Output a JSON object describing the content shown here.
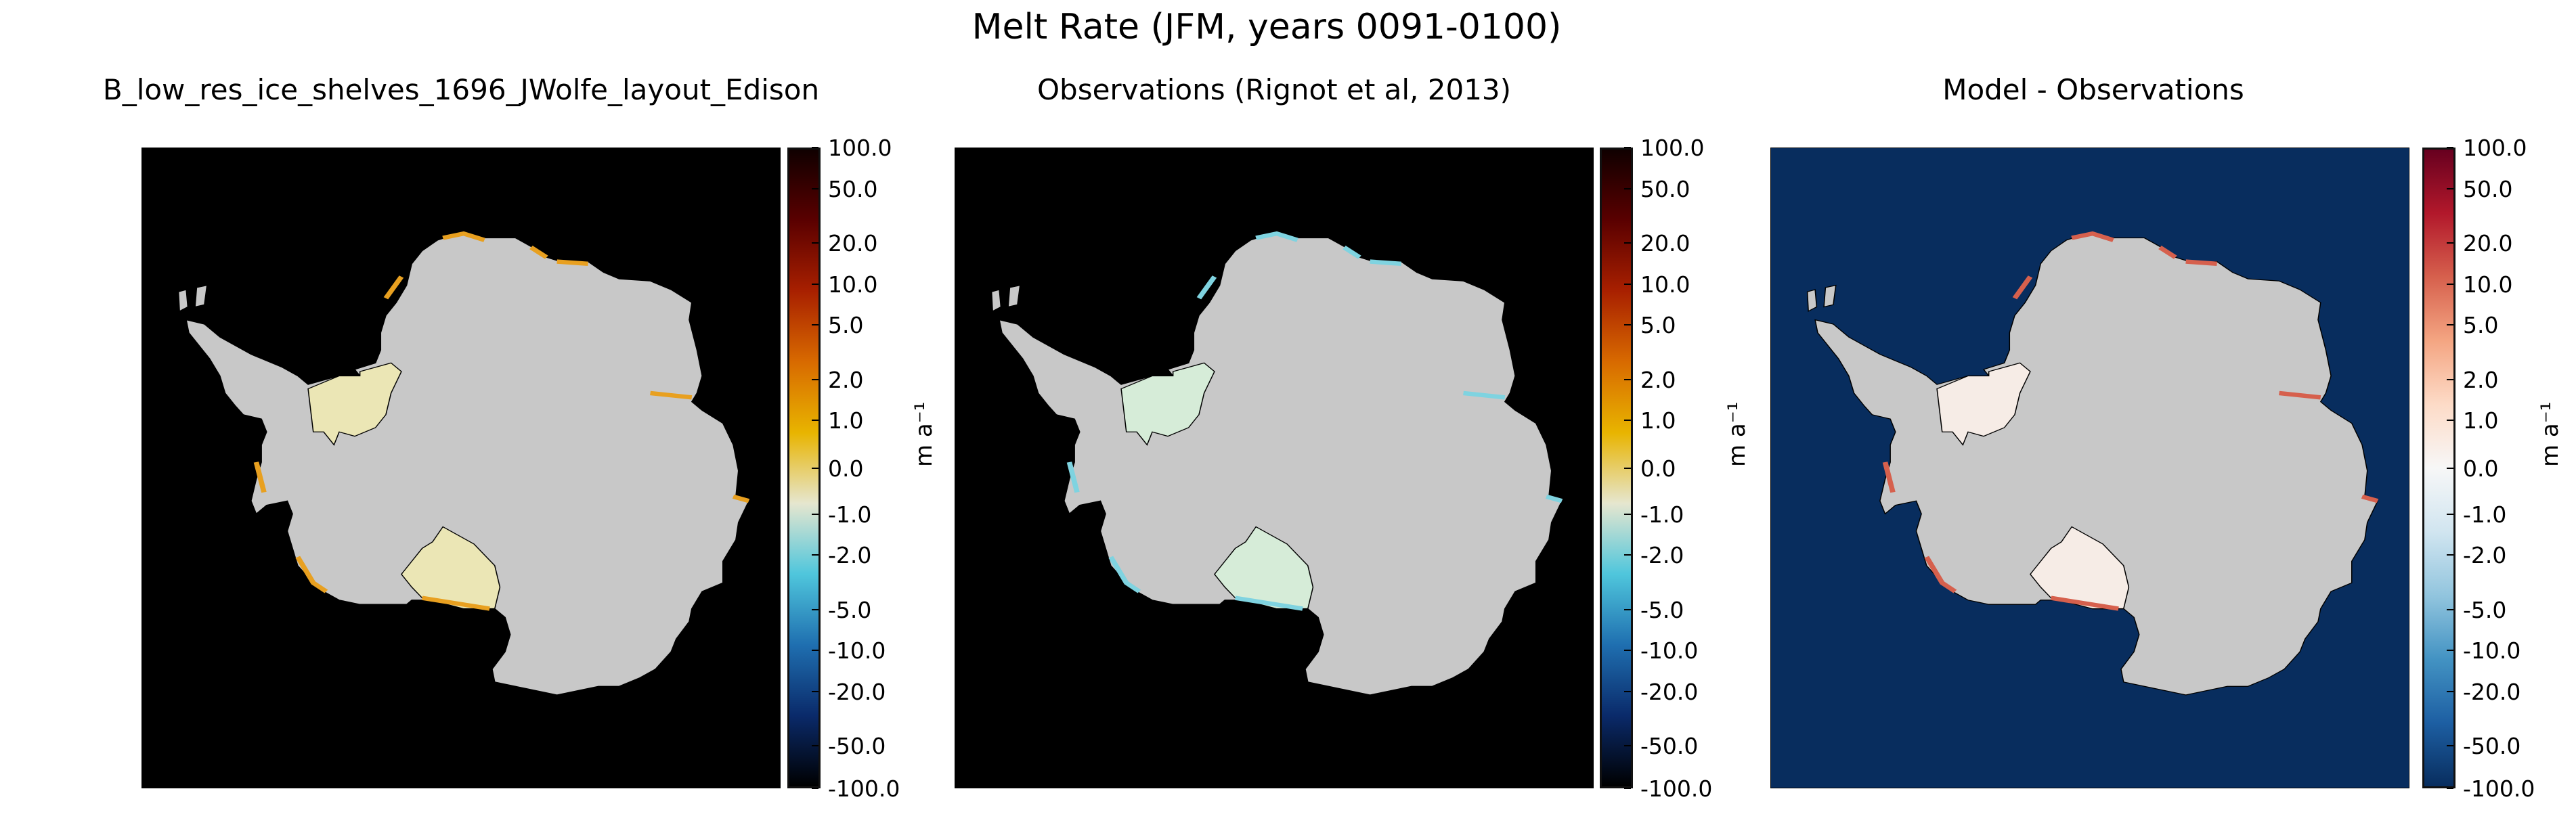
{
  "chart_data": {
    "type": "heatmap",
    "title": "Melt Rate (JFM, years 0091-0100)",
    "panels": [
      {
        "title": "B_low_res_ice_shelves_1696_JWolfe_layout_Edison",
        "colorbar_label": "m a⁻¹",
        "background": "#000000",
        "shelf_color": "#ebe6b5",
        "edge_color": "#e8a020",
        "colormap": [
          "#000000",
          "#0a2a6a",
          "#1f6fb0",
          "#4fc6dc",
          "#e6e6cf",
          "#e8b400",
          "#d86a00",
          "#a82000",
          "#5a0000",
          "#100000"
        ]
      },
      {
        "title": "Observations (Rignot et al, 2013)",
        "colorbar_label": "m a⁻¹",
        "background": "#000000",
        "shelf_color": "#d6ecd8",
        "edge_color": "#7fd3e0",
        "colormap": [
          "#000000",
          "#0a2a6a",
          "#1f6fb0",
          "#4fc6dc",
          "#e6e6cf",
          "#e8b400",
          "#d86a00",
          "#a82000",
          "#5a0000",
          "#100000"
        ]
      },
      {
        "title": "Model - Observations",
        "colorbar_label": "m a⁻¹",
        "background": "#082d5e",
        "shelf_color": "#f6ece6",
        "edge_color": "#d6604d",
        "colormap": [
          "#082d5e",
          "#1d5fa3",
          "#4393c3",
          "#92c5de",
          "#d1e5f0",
          "#f7f7f7",
          "#fddbc7",
          "#f4a582",
          "#d6604d",
          "#b2182b",
          "#67001f"
        ]
      }
    ],
    "colorbar_ticks": [
      "100.0",
      "50.0",
      "20.0",
      "10.0",
      "5.0",
      "2.0",
      "1.0",
      "0.0",
      "-1.0",
      "-2.0",
      "-5.0",
      "-10.0",
      "-20.0",
      "-50.0",
      "-100.0"
    ],
    "colorbar_range": [
      -100,
      100
    ],
    "land_color": "#c8c8c8"
  }
}
